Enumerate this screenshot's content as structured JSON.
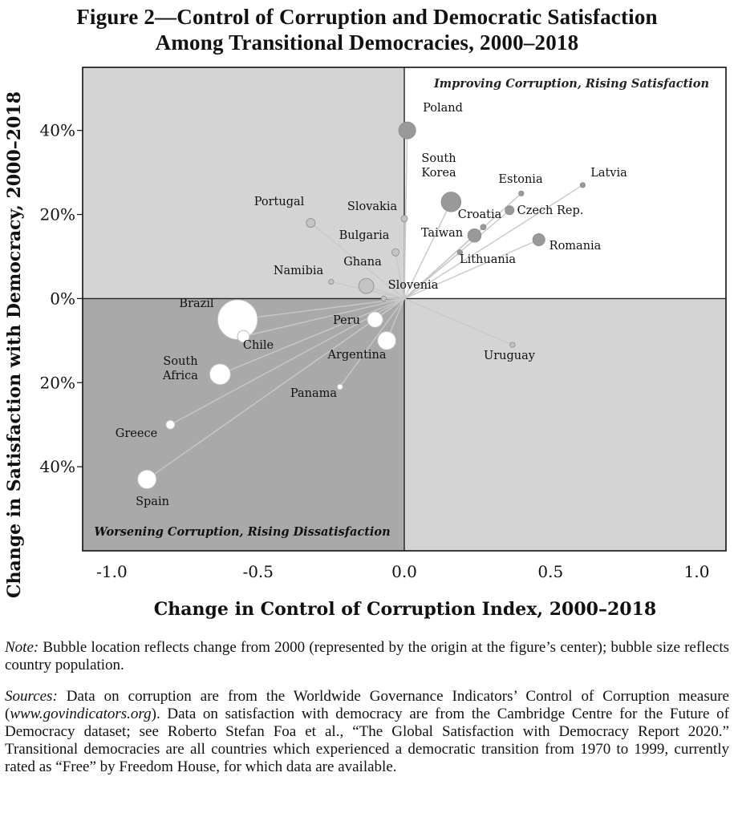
{
  "chart_data": {
    "type": "scatter",
    "title_line1": "Figure 2—Control of Corruption and Democratic Satisfaction",
    "title_line2": "Among Transitional Democracies, 2000–2018",
    "xlabel": "Change in Control of Corruption Index, 2000–2018",
    "ylabel": "Change in Satisfaction with Democracy, 2000–2018",
    "xlim": [
      -1.1,
      1.1
    ],
    "ylim": [
      -0.6,
      0.55
    ],
    "x_ticks": [
      {
        "value": -1.0,
        "label": "-1.0"
      },
      {
        "value": -0.5,
        "label": "-0.5"
      },
      {
        "value": 0.0,
        "label": "0.0"
      },
      {
        "value": 0.5,
        "label": "0.5"
      },
      {
        "value": 1.0,
        "label": "1.0"
      }
    ],
    "y_ticks": [
      {
        "value": 0.4,
        "label": "40%"
      },
      {
        "value": 0.2,
        "label": "20%"
      },
      {
        "value": 0.0,
        "label": "0%"
      },
      {
        "value": -0.2,
        "label": "20%"
      },
      {
        "value": -0.4,
        "label": "40%"
      }
    ],
    "quadrant_labels": {
      "top_right": "Improving Corruption, Rising Satisfaction",
      "bottom_left": "Worsening Corruption, Rising Dissatisfaction"
    },
    "colors": {
      "quadrant_top_left": "#d4d4d4",
      "quadrant_top_right": "#ffffff",
      "quadrant_bottom_left": "#a9a9a9",
      "quadrant_bottom_right": "#d4d4d4",
      "bubble_improving": "#999999",
      "bubble_mixed": "#c4c4c4",
      "bubble_worsening": "#ffffff",
      "line": "#c8c8c8"
    },
    "points": [
      {
        "name": "Poland",
        "x": 0.01,
        "y": 0.4,
        "size": 38.0,
        "tone": "improving"
      },
      {
        "name": "South Korea",
        "x": 0.16,
        "y": 0.23,
        "size": 51.0,
        "tone": "improving"
      },
      {
        "name": "Estonia",
        "x": 0.4,
        "y": 0.25,
        "size": 1.3,
        "tone": "improving"
      },
      {
        "name": "Latvia",
        "x": 0.61,
        "y": 0.27,
        "size": 2.0,
        "tone": "improving"
      },
      {
        "name": "Czech Rep.",
        "x": 0.36,
        "y": 0.21,
        "size": 10.6,
        "tone": "improving"
      },
      {
        "name": "Croatia",
        "x": 0.27,
        "y": 0.17,
        "size": 4.1,
        "tone": "improving"
      },
      {
        "name": "Taiwan",
        "x": 0.24,
        "y": 0.15,
        "size": 23.5,
        "tone": "improving"
      },
      {
        "name": "Lithuania",
        "x": 0.19,
        "y": 0.11,
        "size": 2.8,
        "tone": "improving"
      },
      {
        "name": "Romania",
        "x": 0.46,
        "y": 0.14,
        "size": 19.5,
        "tone": "improving"
      },
      {
        "name": "Slovakia",
        "x": 0.0,
        "y": 0.19,
        "size": 5.4,
        "tone": "mixed"
      },
      {
        "name": "Portugal",
        "x": -0.32,
        "y": 0.18,
        "size": 10.3,
        "tone": "mixed"
      },
      {
        "name": "Bulgaria",
        "x": -0.03,
        "y": 0.11,
        "size": 7.0,
        "tone": "mixed"
      },
      {
        "name": "Namibia",
        "x": -0.25,
        "y": 0.04,
        "size": 2.5,
        "tone": "mixed"
      },
      {
        "name": "Ghana",
        "x": -0.13,
        "y": 0.03,
        "size": 29.8,
        "tone": "mixed"
      },
      {
        "name": "Slovenia",
        "x": -0.07,
        "y": 0.0,
        "size": 2.1,
        "tone": "mixed"
      },
      {
        "name": "Uruguay",
        "x": 0.37,
        "y": -0.11,
        "size": 3.5,
        "tone": "mixed"
      },
      {
        "name": "Brazil",
        "x": -0.57,
        "y": -0.05,
        "size": 209.0,
        "tone": "worsening"
      },
      {
        "name": "Chile",
        "x": -0.55,
        "y": -0.09,
        "size": 18.7,
        "tone": "worsening"
      },
      {
        "name": "Peru",
        "x": -0.1,
        "y": -0.05,
        "size": 32.0,
        "tone": "worsening"
      },
      {
        "name": "Argentina",
        "x": -0.06,
        "y": -0.1,
        "size": 44.5,
        "tone": "worsening"
      },
      {
        "name": "South Africa",
        "x": -0.63,
        "y": -0.18,
        "size": 57.8,
        "tone": "worsening"
      },
      {
        "name": "Panama",
        "x": -0.22,
        "y": -0.21,
        "size": 4.2,
        "tone": "worsening"
      },
      {
        "name": "Greece",
        "x": -0.8,
        "y": -0.3,
        "size": 10.7,
        "tone": "worsening"
      },
      {
        "name": "Spain",
        "x": -0.88,
        "y": -0.43,
        "size": 46.7,
        "tone": "worsening"
      }
    ],
    "label_lines": {
      "South Korea": [
        "South",
        "Korea"
      ],
      "South Africa": [
        "South",
        "Africa"
      ]
    }
  },
  "note": {
    "lead": "Note:",
    "text": " Bubble location reflects change from 2000 (represented by the origin at the figure’s center); bubble size reflects country population."
  },
  "sources": {
    "lead": "Sources:",
    "text1": " Data on corruption are from the Worldwide Governance Indicators’ Control of Corruption measure (",
    "url": "www.govindicators.org",
    "text2": "). Data on satisfaction with democracy are from the Cambridge Centre for the Future of Democracy dataset; see Roberto Stefan Foa et al., “The Global Satisfaction with Democracy Report 2020.” Transitional democracies are all countries which experienced a democratic transition from 1970 to 1999, currently rated as “Free” by Freedom House, for which data are available."
  }
}
